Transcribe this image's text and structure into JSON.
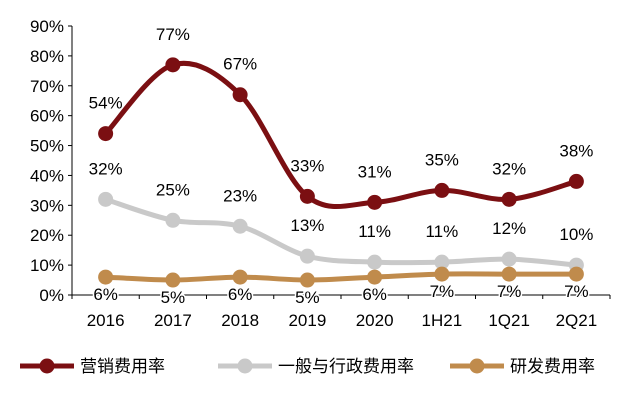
{
  "chart_data": {
    "type": "line",
    "categories": [
      "2016",
      "2017",
      "2018",
      "2019",
      "2020",
      "1H21",
      "1Q21",
      "2Q21"
    ],
    "ylim": [
      0,
      90
    ],
    "yticks": [
      "0%",
      "10%",
      "20%",
      "30%",
      "40%",
      "50%",
      "60%",
      "70%",
      "80%",
      "90%"
    ],
    "grid": false,
    "smooth": true,
    "legend_position": "bottom",
    "series": [
      {
        "name": "营销费用率",
        "color": "#7B0F12",
        "values": [
          54,
          77,
          67,
          33,
          31,
          35,
          32,
          38
        ],
        "labels": [
          "54%",
          "77%",
          "67%",
          "33%",
          "31%",
          "35%",
          "32%",
          "38%"
        ]
      },
      {
        "name": "一般与行政费用率",
        "color": "#C9C9C9",
        "values": [
          32,
          25,
          23,
          13,
          11,
          11,
          12,
          10
        ],
        "labels": [
          "32%",
          "25%",
          "23%",
          "13%",
          "11%",
          "11%",
          "12%",
          "10%"
        ]
      },
      {
        "name": "研发费用率",
        "color": "#C08B4C",
        "values": [
          6,
          5,
          6,
          5,
          6,
          7,
          7,
          7
        ],
        "labels": [
          "6%",
          "5%",
          "6%",
          "5%",
          "6%",
          "7%",
          "7%",
          "7%"
        ]
      }
    ]
  }
}
